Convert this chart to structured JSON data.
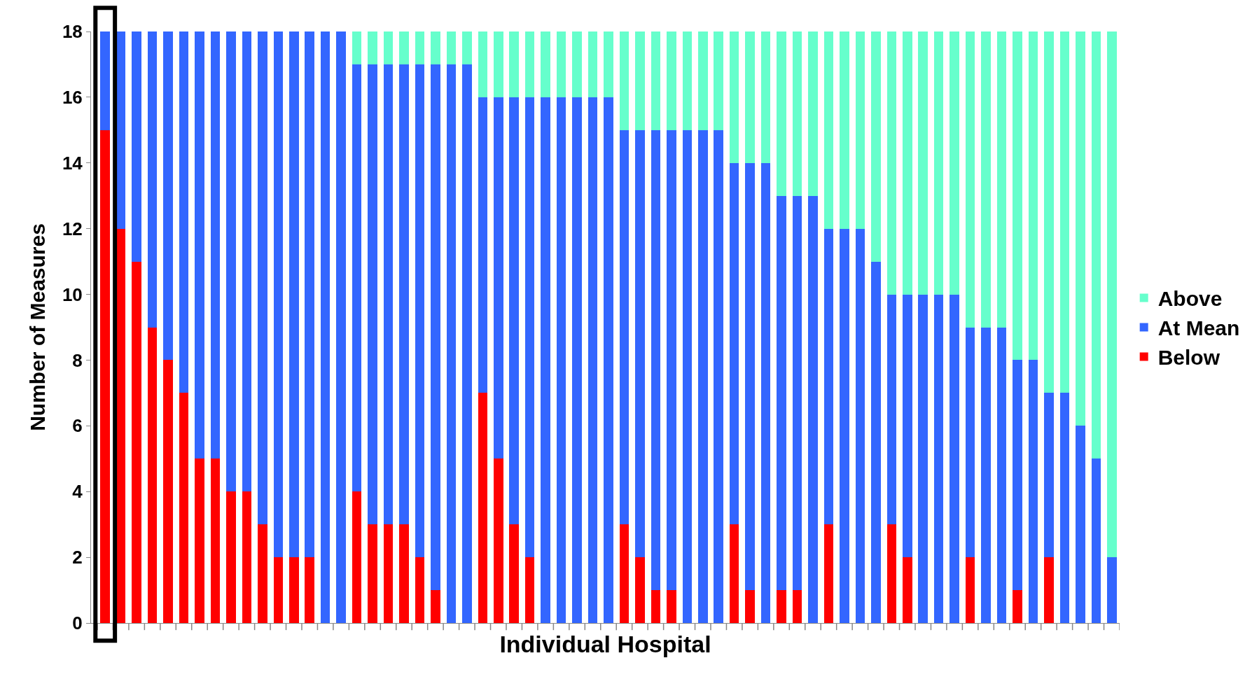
{
  "chart_data": {
    "type": "bar",
    "stacked": true,
    "xlabel": "Individual Hospital",
    "ylabel": "Number of Measures",
    "categories": [
      null,
      null,
      null,
      null,
      null,
      null,
      null,
      null,
      null,
      null,
      null,
      null,
      null,
      null,
      null,
      null,
      null,
      null,
      null,
      null,
      null,
      null,
      null,
      null,
      null,
      null,
      null,
      null,
      null,
      null,
      null,
      null,
      null,
      null,
      null,
      null,
      null,
      null,
      null,
      null,
      null,
      null,
      null,
      null,
      null,
      null,
      null,
      null,
      null,
      null,
      null,
      null,
      null,
      null,
      null,
      null,
      null,
      null,
      null,
      null,
      null,
      null,
      null,
      null,
      null
    ],
    "series": [
      {
        "name": "Below",
        "color": "#ff0000",
        "values": [
          15,
          12,
          11,
          9,
          8,
          7,
          5,
          5,
          4,
          4,
          3,
          2,
          2,
          2,
          0,
          0,
          4,
          3,
          3,
          3,
          2,
          1,
          0,
          0,
          7,
          5,
          3,
          2,
          0,
          0,
          0,
          0,
          0,
          3,
          2,
          1,
          1,
          0,
          0,
          0,
          3,
          1,
          0,
          1,
          1,
          0,
          3,
          0,
          0,
          0,
          3,
          2,
          0,
          0,
          0,
          2,
          0,
          0,
          1,
          0,
          2,
          0,
          0,
          0,
          0
        ]
      },
      {
        "name": "At Mean",
        "color": "#3366ff",
        "values": [
          3,
          6,
          7,
          9,
          10,
          11,
          13,
          13,
          14,
          14,
          15,
          16,
          16,
          16,
          18,
          18,
          13,
          14,
          14,
          14,
          15,
          16,
          17,
          17,
          9,
          11,
          13,
          14,
          16,
          16,
          16,
          16,
          16,
          12,
          13,
          14,
          14,
          15,
          15,
          15,
          11,
          13,
          14,
          12,
          12,
          13,
          9,
          12,
          12,
          11,
          7,
          8,
          10,
          10,
          10,
          7,
          9,
          9,
          7,
          8,
          5,
          7,
          6,
          5,
          2
        ]
      },
      {
        "name": "Above",
        "color": "#66ffcc",
        "values": [
          0,
          0,
          0,
          0,
          0,
          0,
          0,
          0,
          0,
          0,
          0,
          0,
          0,
          0,
          0,
          0,
          1,
          1,
          1,
          1,
          1,
          1,
          1,
          1,
          2,
          2,
          2,
          2,
          2,
          2,
          2,
          2,
          2,
          3,
          3,
          3,
          3,
          3,
          3,
          3,
          4,
          4,
          4,
          5,
          5,
          5,
          6,
          6,
          6,
          7,
          8,
          8,
          8,
          8,
          8,
          9,
          9,
          9,
          10,
          10,
          11,
          11,
          12,
          13,
          16
        ]
      }
    ],
    "ylim": [
      0,
      18
    ],
    "yticks": [
      0,
      2,
      4,
      6,
      8,
      10,
      12,
      14,
      16,
      18
    ],
    "legend": "right"
  }
}
